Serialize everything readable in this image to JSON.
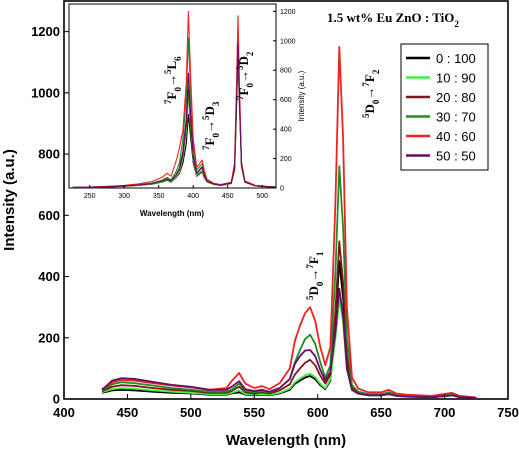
{
  "chart_data": [
    {
      "type": "line",
      "xlabel": "Wavelength (nm)",
      "ylabel": "Intensity (a.u.)",
      "xlim": [
        400,
        750
      ],
      "ylim": [
        0,
        1300
      ],
      "xticks": [
        "400",
        "450",
        "500",
        "550",
        "600",
        "650",
        "700",
        "750"
      ],
      "yticks": [
        "0",
        "200",
        "400",
        "600",
        "800",
        "1000",
        "1200"
      ],
      "annotation_title": "1.5 wt% Eu ZnO : TiO",
      "annotation_title_sub": "2",
      "legend_position": "top-right",
      "grid": false,
      "peak_labels": [
        {
          "lower": "5",
          "main": "D",
          "sub0": "0",
          "arrow": "→",
          "upper": "7",
          "main2": "F",
          "sub1": "1"
        },
        {
          "lower": "5",
          "main": "D",
          "sub0": "0",
          "arrow": "→",
          "upper": "7",
          "main2": "F",
          "sub1": "2"
        }
      ],
      "series": [
        {
          "name": "0 : 100",
          "color": "#000000",
          "x": [
            430,
            438,
            445,
            455,
            470,
            485,
            500,
            515,
            528,
            532,
            538,
            543,
            550,
            556,
            562,
            570,
            578,
            582,
            586,
            590,
            594,
            598,
            602,
            606,
            610,
            614,
            617,
            620,
            623,
            627,
            632,
            640,
            650,
            656,
            662,
            670,
            690,
            702,
            706,
            712,
            725
          ],
          "y": [
            20,
            28,
            30,
            28,
            24,
            20,
            18,
            14,
            14,
            18,
            22,
            14,
            12,
            14,
            12,
            18,
            30,
            50,
            60,
            70,
            75,
            65,
            45,
            32,
            60,
            250,
            450,
            330,
            120,
            30,
            18,
            12,
            12,
            16,
            10,
            8,
            6,
            10,
            12,
            6,
            4
          ]
        },
        {
          "name": "10 : 90",
          "color": "#44ee44",
          "x": [
            430,
            438,
            445,
            455,
            470,
            485,
            500,
            515,
            528,
            532,
            538,
            543,
            550,
            556,
            562,
            570,
            578,
            582,
            586,
            590,
            594,
            598,
            602,
            606,
            610,
            614,
            617,
            620,
            623,
            627,
            632,
            640,
            650,
            656,
            662,
            670,
            690,
            702,
            706,
            712,
            725
          ],
          "y": [
            22,
            32,
            36,
            34,
            28,
            24,
            20,
            16,
            16,
            20,
            28,
            16,
            14,
            16,
            14,
            20,
            34,
            55,
            66,
            77,
            83,
            72,
            50,
            35,
            65,
            200,
            325,
            250,
            95,
            28,
            16,
            12,
            12,
            16,
            10,
            8,
            6,
            10,
            12,
            6,
            4
          ]
        },
        {
          "name": "20 : 80",
          "color": "#7a1a1a",
          "x": [
            430,
            438,
            445,
            455,
            470,
            485,
            500,
            515,
            528,
            532,
            538,
            543,
            550,
            556,
            562,
            570,
            578,
            582,
            586,
            590,
            594,
            598,
            602,
            606,
            610,
            614,
            617,
            620,
            623,
            627,
            632,
            640,
            650,
            656,
            662,
            670,
            690,
            702,
            706,
            712,
            725
          ],
          "y": [
            25,
            40,
            45,
            43,
            36,
            30,
            26,
            20,
            20,
            26,
            40,
            22,
            18,
            22,
            18,
            28,
            48,
            80,
            100,
            118,
            128,
            110,
            76,
            50,
            80,
            290,
            515,
            380,
            140,
            36,
            20,
            14,
            14,
            18,
            12,
            10,
            8,
            12,
            14,
            8,
            4
          ]
        },
        {
          "name": "30 : 70",
          "color": "#228b22",
          "x": [
            430,
            438,
            445,
            455,
            470,
            485,
            500,
            515,
            528,
            532,
            538,
            543,
            550,
            556,
            562,
            570,
            578,
            582,
            586,
            590,
            594,
            598,
            602,
            606,
            610,
            614,
            617,
            620,
            623,
            627,
            632,
            640,
            650,
            656,
            662,
            670,
            690,
            702,
            706,
            712,
            725
          ],
          "y": [
            28,
            48,
            55,
            52,
            44,
            36,
            30,
            24,
            24,
            30,
            50,
            26,
            22,
            26,
            22,
            36,
            65,
            120,
            160,
            195,
            210,
            180,
            120,
            70,
            110,
            420,
            760,
            560,
            200,
            45,
            24,
            16,
            16,
            22,
            14,
            10,
            8,
            14,
            16,
            8,
            4
          ]
        },
        {
          "name": "40 : 60",
          "color": "#ee2222",
          "x": [
            430,
            438,
            445,
            455,
            470,
            485,
            500,
            515,
            528,
            532,
            538,
            543,
            550,
            556,
            562,
            570,
            578,
            582,
            586,
            590,
            594,
            598,
            602,
            606,
            610,
            614,
            617,
            620,
            623,
            627,
            632,
            640,
            650,
            656,
            662,
            670,
            690,
            702,
            706,
            712,
            725
          ],
          "y": [
            32,
            55,
            62,
            60,
            52,
            44,
            38,
            30,
            36,
            58,
            85,
            50,
            36,
            42,
            32,
            52,
            100,
            190,
            240,
            280,
            300,
            255,
            170,
            110,
            170,
            650,
            1150,
            850,
            300,
            70,
            34,
            22,
            22,
            30,
            18,
            14,
            10,
            18,
            20,
            10,
            5
          ]
        },
        {
          "name": "50 : 50",
          "color": "#6a0a6a",
          "x": [
            430,
            438,
            445,
            455,
            470,
            485,
            500,
            515,
            528,
            532,
            538,
            543,
            550,
            556,
            562,
            570,
            578,
            582,
            586,
            590,
            594,
            598,
            602,
            606,
            610,
            614,
            617,
            620,
            623,
            627,
            632,
            640,
            650,
            656,
            662,
            670,
            690,
            702,
            706,
            712,
            725
          ],
          "y": [
            30,
            60,
            68,
            66,
            56,
            46,
            40,
            30,
            30,
            40,
            58,
            32,
            26,
            30,
            24,
            36,
            65,
            115,
            140,
            158,
            160,
            140,
            95,
            60,
            90,
            220,
            360,
            270,
            100,
            30,
            18,
            12,
            12,
            16,
            10,
            8,
            6,
            10,
            12,
            6,
            4
          ]
        }
      ]
    },
    {
      "type": "line",
      "xlabel": "Wavelength (nm)",
      "ylabel": "Intensity (a.u.)",
      "xlim": [
        220,
        520
      ],
      "ylim": [
        0,
        1250
      ],
      "xticks": [
        "250",
        "300",
        "350",
        "400",
        "450",
        "500"
      ],
      "yticks": [
        "0",
        "200",
        "400",
        "600",
        "800",
        "1000",
        "1200"
      ],
      "transition_labels": [
        {
          "lower": "7",
          "main": "F",
          "sub0": "0",
          "arrow": "→",
          "upper": "5",
          "main2": "L",
          "sub1": "6"
        },
        {
          "lower": "7",
          "main": "F",
          "sub0": "0",
          "arrow": "→",
          "upper": "5",
          "main2": "D",
          "sub1": "3"
        },
        {
          "lower": "7",
          "main": "F",
          "sub0": "0",
          "arrow": "→",
          "upper": "5",
          "main2": "D",
          "sub1": "2"
        }
      ],
      "series": [
        {
          "name": "0 : 100",
          "color": "#000000",
          "x": [
            225,
            250,
            280,
            300,
            320,
            340,
            355,
            362,
            368,
            375,
            380,
            385,
            390,
            393,
            396,
            400,
            405,
            410,
            413,
            416,
            420,
            430,
            440,
            455,
            460,
            463,
            465,
            467,
            470,
            475,
            490,
            510,
            520
          ],
          "y": [
            4,
            5,
            8,
            12,
            18,
            26,
            40,
            52,
            40,
            70,
            100,
            170,
            300,
            500,
            360,
            170,
            80,
            100,
            110,
            70,
            40,
            24,
            18,
            30,
            120,
            600,
            1000,
            600,
            150,
            40,
            15,
            8,
            6
          ]
        },
        {
          "name": "10 : 90",
          "color": "#44ee44",
          "x": [
            225,
            250,
            280,
            300,
            320,
            340,
            355,
            362,
            368,
            375,
            380,
            385,
            390,
            393,
            396,
            400,
            405,
            410,
            413,
            416,
            420,
            430,
            440,
            455,
            460,
            463,
            465,
            467,
            470,
            475,
            490,
            510,
            520
          ],
          "y": [
            4,
            5,
            8,
            12,
            18,
            28,
            42,
            55,
            42,
            75,
            110,
            200,
            380,
            630,
            430,
            190,
            85,
            110,
            120,
            75,
            40,
            24,
            18,
            30,
            120,
            560,
            880,
            550,
            140,
            38,
            15,
            8,
            6
          ]
        },
        {
          "name": "20 : 80",
          "color": "#7a1a1a",
          "x": [
            225,
            250,
            280,
            300,
            320,
            340,
            355,
            362,
            368,
            375,
            380,
            385,
            390,
            393,
            396,
            400,
            405,
            410,
            413,
            416,
            420,
            430,
            440,
            455,
            460,
            463,
            465,
            467,
            470,
            475,
            490,
            510,
            520
          ],
          "y": [
            4,
            5,
            8,
            12,
            20,
            30,
            46,
            60,
            46,
            85,
            125,
            220,
            420,
            690,
            470,
            210,
            95,
            125,
            135,
            85,
            45,
            26,
            20,
            32,
            130,
            600,
            950,
            590,
            150,
            40,
            15,
            8,
            6
          ]
        },
        {
          "name": "30 : 70",
          "color": "#228b22",
          "x": [
            225,
            250,
            280,
            300,
            320,
            340,
            355,
            362,
            368,
            375,
            380,
            385,
            390,
            393,
            396,
            400,
            405,
            410,
            413,
            416,
            420,
            430,
            440,
            455,
            460,
            463,
            465,
            467,
            470,
            475,
            490,
            510,
            520
          ],
          "y": [
            4,
            6,
            10,
            14,
            22,
            34,
            54,
            72,
            55,
            110,
            170,
            330,
            620,
            1020,
            690,
            300,
            120,
            150,
            165,
            100,
            50,
            28,
            20,
            34,
            140,
            660,
            1030,
            640,
            160,
            42,
            16,
            9,
            6
          ]
        },
        {
          "name": "40 : 60",
          "color": "#ee2222",
          "x": [
            225,
            250,
            280,
            300,
            320,
            340,
            355,
            362,
            368,
            375,
            380,
            385,
            390,
            393,
            396,
            400,
            405,
            410,
            413,
            416,
            420,
            430,
            440,
            455,
            460,
            463,
            465,
            467,
            470,
            475,
            490,
            510,
            520
          ],
          "y": [
            5,
            7,
            12,
            18,
            28,
            44,
            72,
            100,
            80,
            180,
            270,
            390,
            720,
            1200,
            800,
            340,
            140,
            170,
            190,
            120,
            60,
            32,
            24,
            40,
            170,
            760,
            1170,
            720,
            180,
            48,
            18,
            10,
            7
          ]
        },
        {
          "name": "50 : 50",
          "color": "#6a0a6a",
          "x": [
            225,
            250,
            280,
            300,
            320,
            340,
            355,
            362,
            368,
            375,
            380,
            385,
            390,
            393,
            396,
            400,
            405,
            410,
            413,
            416,
            420,
            430,
            440,
            455,
            460,
            463,
            465,
            467,
            470,
            475,
            490,
            510,
            520
          ],
          "y": [
            4,
            6,
            9,
            13,
            20,
            30,
            48,
            62,
            48,
            90,
            135,
            250,
            480,
            780,
            530,
            230,
            100,
            130,
            145,
            90,
            46,
            27,
            20,
            33,
            135,
            620,
            980,
            610,
            155,
            41,
            15,
            8,
            6
          ]
        }
      ]
    }
  ]
}
